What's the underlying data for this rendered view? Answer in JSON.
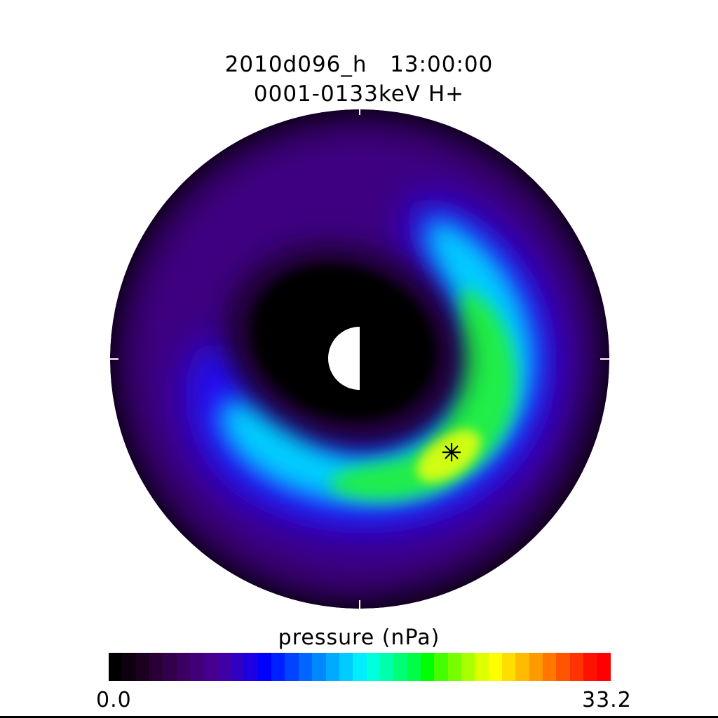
{
  "title": {
    "line1": "2010d096_h   13:00:00",
    "line2": "0001-0133keV H+"
  },
  "colorbar": {
    "label": "pressure (nPa)",
    "min_label": "0.0",
    "max_label": "33.2",
    "min": 0.0,
    "max": 33.2,
    "colors": [
      "#000000",
      "#0e000e",
      "#1c0020",
      "#2a0036",
      "#33004c",
      "#3b0062",
      "#420078",
      "#46008e",
      "#4000a6",
      "#3000c4",
      "#1c00e2",
      "#0000ff",
      "#0020ff",
      "#0044ff",
      "#0066ff",
      "#0088ff",
      "#00aaff",
      "#00ccff",
      "#00eeff",
      "#00ffdd",
      "#00ffaa",
      "#00ff77",
      "#00ff44",
      "#00ff00",
      "#44ff00",
      "#77ff00",
      "#aaff00",
      "#ddff00",
      "#ffff00",
      "#ffdd00",
      "#ffbb00",
      "#ff9900",
      "#ff7700",
      "#ff5500",
      "#ff3300",
      "#ff1100",
      "#ff0000"
    ]
  },
  "chart_data": {
    "type": "heatmap",
    "title": "2010d096_h   13:00:00",
    "subtitle": "0001-0133keV H+",
    "colorbar_label": "pressure (nPa)",
    "colorbar_range": [
      0.0,
      33.2
    ],
    "peak_marker": "asterisk",
    "approximate_regions": [
      {
        "region": "inner core",
        "pressure_nPa": 0.0
      },
      {
        "region": "outer rim",
        "pressure_nPa": 2.5
      },
      {
        "region": "ring dusk side",
        "pressure_nPa": 10.0
      },
      {
        "region": "ring night/dawn side",
        "pressure_nPa": 17.0
      },
      {
        "region": "peak near marker",
        "pressure_nPa": 21.0
      }
    ]
  }
}
